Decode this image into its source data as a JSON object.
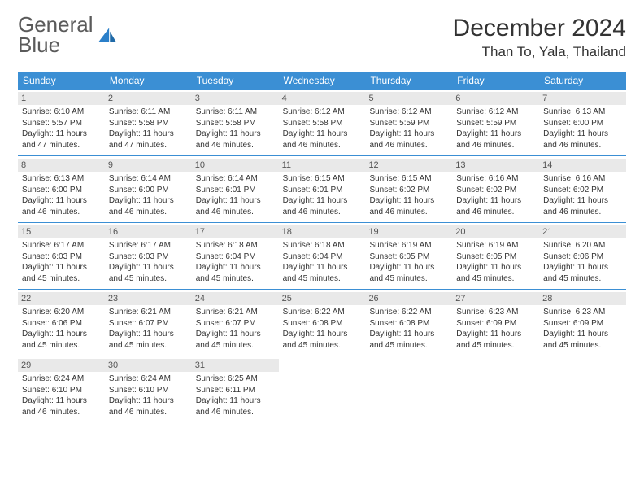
{
  "brand": {
    "line1": "General",
    "line2": "Blue"
  },
  "title": "December 2024",
  "location": "Than To, Yala, Thailand",
  "colors": {
    "header_bg": "#3b8fd4",
    "day_num_bg": "#e9e9e9",
    "text": "#333333",
    "brand_gray": "#5a5a5a",
    "brand_blue": "#2a7fc9"
  },
  "dow": [
    "Sunday",
    "Monday",
    "Tuesday",
    "Wednesday",
    "Thursday",
    "Friday",
    "Saturday"
  ],
  "weeks": [
    [
      {
        "n": "1",
        "sr": "Sunrise: 6:10 AM",
        "ss": "Sunset: 5:57 PM",
        "d1": "Daylight: 11 hours",
        "d2": "and 47 minutes."
      },
      {
        "n": "2",
        "sr": "Sunrise: 6:11 AM",
        "ss": "Sunset: 5:58 PM",
        "d1": "Daylight: 11 hours",
        "d2": "and 47 minutes."
      },
      {
        "n": "3",
        "sr": "Sunrise: 6:11 AM",
        "ss": "Sunset: 5:58 PM",
        "d1": "Daylight: 11 hours",
        "d2": "and 46 minutes."
      },
      {
        "n": "4",
        "sr": "Sunrise: 6:12 AM",
        "ss": "Sunset: 5:58 PM",
        "d1": "Daylight: 11 hours",
        "d2": "and 46 minutes."
      },
      {
        "n": "5",
        "sr": "Sunrise: 6:12 AM",
        "ss": "Sunset: 5:59 PM",
        "d1": "Daylight: 11 hours",
        "d2": "and 46 minutes."
      },
      {
        "n": "6",
        "sr": "Sunrise: 6:12 AM",
        "ss": "Sunset: 5:59 PM",
        "d1": "Daylight: 11 hours",
        "d2": "and 46 minutes."
      },
      {
        "n": "7",
        "sr": "Sunrise: 6:13 AM",
        "ss": "Sunset: 6:00 PM",
        "d1": "Daylight: 11 hours",
        "d2": "and 46 minutes."
      }
    ],
    [
      {
        "n": "8",
        "sr": "Sunrise: 6:13 AM",
        "ss": "Sunset: 6:00 PM",
        "d1": "Daylight: 11 hours",
        "d2": "and 46 minutes."
      },
      {
        "n": "9",
        "sr": "Sunrise: 6:14 AM",
        "ss": "Sunset: 6:00 PM",
        "d1": "Daylight: 11 hours",
        "d2": "and 46 minutes."
      },
      {
        "n": "10",
        "sr": "Sunrise: 6:14 AM",
        "ss": "Sunset: 6:01 PM",
        "d1": "Daylight: 11 hours",
        "d2": "and 46 minutes."
      },
      {
        "n": "11",
        "sr": "Sunrise: 6:15 AM",
        "ss": "Sunset: 6:01 PM",
        "d1": "Daylight: 11 hours",
        "d2": "and 46 minutes."
      },
      {
        "n": "12",
        "sr": "Sunrise: 6:15 AM",
        "ss": "Sunset: 6:02 PM",
        "d1": "Daylight: 11 hours",
        "d2": "and 46 minutes."
      },
      {
        "n": "13",
        "sr": "Sunrise: 6:16 AM",
        "ss": "Sunset: 6:02 PM",
        "d1": "Daylight: 11 hours",
        "d2": "and 46 minutes."
      },
      {
        "n": "14",
        "sr": "Sunrise: 6:16 AM",
        "ss": "Sunset: 6:02 PM",
        "d1": "Daylight: 11 hours",
        "d2": "and 46 minutes."
      }
    ],
    [
      {
        "n": "15",
        "sr": "Sunrise: 6:17 AM",
        "ss": "Sunset: 6:03 PM",
        "d1": "Daylight: 11 hours",
        "d2": "and 45 minutes."
      },
      {
        "n": "16",
        "sr": "Sunrise: 6:17 AM",
        "ss": "Sunset: 6:03 PM",
        "d1": "Daylight: 11 hours",
        "d2": "and 45 minutes."
      },
      {
        "n": "17",
        "sr": "Sunrise: 6:18 AM",
        "ss": "Sunset: 6:04 PM",
        "d1": "Daylight: 11 hours",
        "d2": "and 45 minutes."
      },
      {
        "n": "18",
        "sr": "Sunrise: 6:18 AM",
        "ss": "Sunset: 6:04 PM",
        "d1": "Daylight: 11 hours",
        "d2": "and 45 minutes."
      },
      {
        "n": "19",
        "sr": "Sunrise: 6:19 AM",
        "ss": "Sunset: 6:05 PM",
        "d1": "Daylight: 11 hours",
        "d2": "and 45 minutes."
      },
      {
        "n": "20",
        "sr": "Sunrise: 6:19 AM",
        "ss": "Sunset: 6:05 PM",
        "d1": "Daylight: 11 hours",
        "d2": "and 45 minutes."
      },
      {
        "n": "21",
        "sr": "Sunrise: 6:20 AM",
        "ss": "Sunset: 6:06 PM",
        "d1": "Daylight: 11 hours",
        "d2": "and 45 minutes."
      }
    ],
    [
      {
        "n": "22",
        "sr": "Sunrise: 6:20 AM",
        "ss": "Sunset: 6:06 PM",
        "d1": "Daylight: 11 hours",
        "d2": "and 45 minutes."
      },
      {
        "n": "23",
        "sr": "Sunrise: 6:21 AM",
        "ss": "Sunset: 6:07 PM",
        "d1": "Daylight: 11 hours",
        "d2": "and 45 minutes."
      },
      {
        "n": "24",
        "sr": "Sunrise: 6:21 AM",
        "ss": "Sunset: 6:07 PM",
        "d1": "Daylight: 11 hours",
        "d2": "and 45 minutes."
      },
      {
        "n": "25",
        "sr": "Sunrise: 6:22 AM",
        "ss": "Sunset: 6:08 PM",
        "d1": "Daylight: 11 hours",
        "d2": "and 45 minutes."
      },
      {
        "n": "26",
        "sr": "Sunrise: 6:22 AM",
        "ss": "Sunset: 6:08 PM",
        "d1": "Daylight: 11 hours",
        "d2": "and 45 minutes."
      },
      {
        "n": "27",
        "sr": "Sunrise: 6:23 AM",
        "ss": "Sunset: 6:09 PM",
        "d1": "Daylight: 11 hours",
        "d2": "and 45 minutes."
      },
      {
        "n": "28",
        "sr": "Sunrise: 6:23 AM",
        "ss": "Sunset: 6:09 PM",
        "d1": "Daylight: 11 hours",
        "d2": "and 45 minutes."
      }
    ],
    [
      {
        "n": "29",
        "sr": "Sunrise: 6:24 AM",
        "ss": "Sunset: 6:10 PM",
        "d1": "Daylight: 11 hours",
        "d2": "and 46 minutes."
      },
      {
        "n": "30",
        "sr": "Sunrise: 6:24 AM",
        "ss": "Sunset: 6:10 PM",
        "d1": "Daylight: 11 hours",
        "d2": "and 46 minutes."
      },
      {
        "n": "31",
        "sr": "Sunrise: 6:25 AM",
        "ss": "Sunset: 6:11 PM",
        "d1": "Daylight: 11 hours",
        "d2": "and 46 minutes."
      },
      {
        "empty": true
      },
      {
        "empty": true
      },
      {
        "empty": true
      },
      {
        "empty": true
      }
    ]
  ]
}
